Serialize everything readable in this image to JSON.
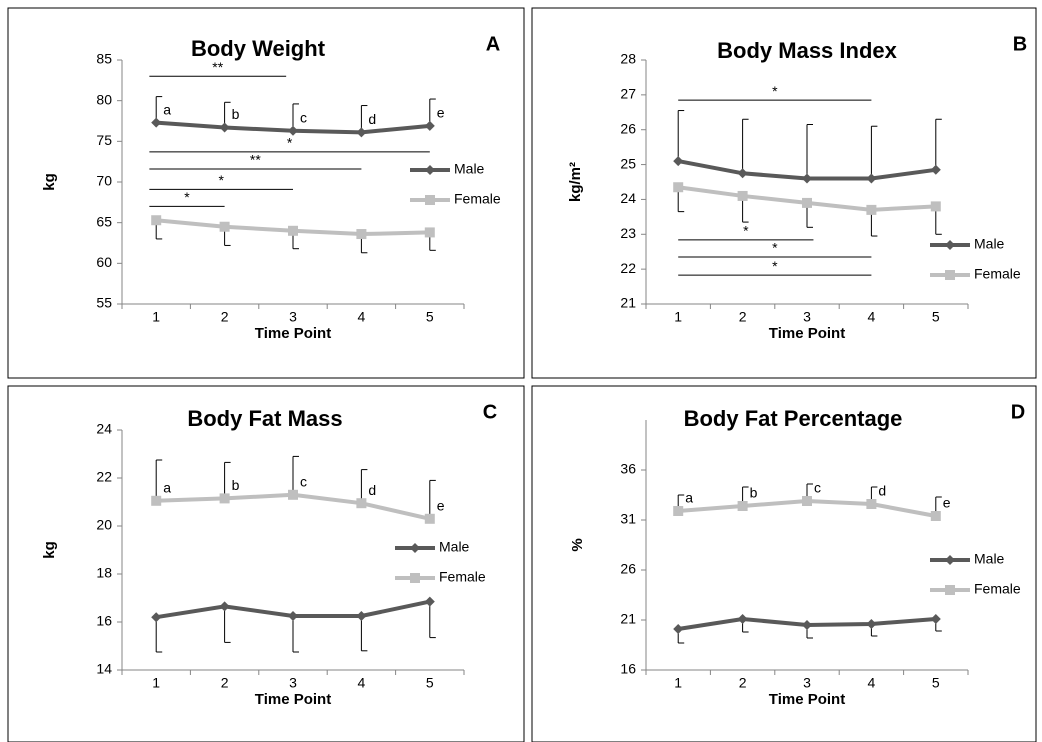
{
  "chart_data": [
    {
      "type": "line",
      "title": "Body Weight",
      "panel": "A",
      "x_label": "Time Point",
      "y_label": "kg",
      "x": [
        1,
        2,
        3,
        4,
        5
      ],
      "xlim": [
        0.5,
        5.5
      ],
      "xticks": [
        1,
        2,
        3,
        4,
        5
      ],
      "ylim": [
        55,
        85
      ],
      "yticks": [
        55,
        60,
        65,
        70,
        75,
        80,
        85
      ],
      "legend": "right",
      "series": [
        {
          "name": "Male",
          "color": "#595959",
          "marker": "diamond",
          "values": [
            77.3,
            76.7,
            76.3,
            76.1,
            76.9
          ],
          "errors": [
            3.2,
            3.1,
            3.3,
            3.3,
            3.3
          ],
          "error_direction": "up"
        },
        {
          "name": "Female",
          "color": "#bfbfbf",
          "marker": "square",
          "values": [
            65.3,
            64.5,
            64.0,
            63.6,
            63.8
          ],
          "errors": [
            2.3,
            2.3,
            2.2,
            2.3,
            2.2
          ],
          "error_direction": "down"
        }
      ],
      "point_labels": [
        "a",
        "b",
        "c",
        "d",
        "e"
      ],
      "point_labels_series": 0,
      "brackets": [
        {
          "label": "**",
          "from": 0.9,
          "to": 2.9,
          "y": 83
        },
        {
          "label": "*",
          "from": 0.9,
          "to": 5,
          "y": 73.7
        },
        {
          "label": "**",
          "from": 0.9,
          "to": 4,
          "y": 71.6
        },
        {
          "label": "*",
          "from": 0.9,
          "to": 3,
          "y": 69.1
        },
        {
          "label": "*",
          "from": 0.9,
          "to": 2,
          "y": 67
        }
      ]
    },
    {
      "type": "line",
      "title": "Body Mass Index",
      "panel": "B",
      "x_label": "Time Point",
      "y_label": "kg/m²",
      "x": [
        1,
        2,
        3,
        4,
        5
      ],
      "xlim": [
        0.5,
        5.5
      ],
      "xticks": [
        1,
        2,
        3,
        4,
        5
      ],
      "ylim": [
        21,
        28
      ],
      "yticks": [
        21,
        22,
        23,
        24,
        25,
        26,
        27,
        28
      ],
      "legend": "right",
      "series": [
        {
          "name": "Male",
          "color": "#595959",
          "marker": "diamond",
          "values": [
            25.1,
            24.75,
            24.6,
            24.6,
            24.85
          ],
          "errors": [
            1.45,
            1.55,
            1.55,
            1.5,
            1.45
          ],
          "error_direction": "up"
        },
        {
          "name": "Female",
          "color": "#bfbfbf",
          "marker": "square",
          "values": [
            24.35,
            24.1,
            23.9,
            23.7,
            23.8
          ],
          "errors": [
            0.7,
            0.75,
            0.7,
            0.75,
            0.8
          ],
          "error_direction": "down"
        }
      ],
      "brackets": [
        {
          "label": "*",
          "from": 1,
          "to": 4,
          "y": 26.85
        },
        {
          "label": "*",
          "from": 1,
          "to": 3.1,
          "y": 22.84
        },
        {
          "label": "*",
          "from": 1,
          "to": 4,
          "y": 22.35
        },
        {
          "label": "*",
          "from": 1,
          "to": 4,
          "y": 21.83
        }
      ]
    },
    {
      "type": "line",
      "title": "Body Fat Mass",
      "panel": "C",
      "x_label": "Time Point",
      "y_label": "kg",
      "x": [
        1,
        2,
        3,
        4,
        5
      ],
      "xlim": [
        0.5,
        5.5
      ],
      "xticks": [
        1,
        2,
        3,
        4,
        5
      ],
      "ylim": [
        14,
        24
      ],
      "yticks": [
        14,
        16,
        18,
        20,
        22,
        24
      ],
      "legend": "right",
      "series": [
        {
          "name": "Male",
          "color": "#595959",
          "marker": "diamond",
          "values": [
            16.2,
            16.65,
            16.25,
            16.25,
            16.85
          ],
          "errors": [
            1.45,
            1.5,
            1.5,
            1.45,
            1.5
          ],
          "error_direction": "down"
        },
        {
          "name": "Female",
          "color": "#bfbfbf",
          "marker": "square",
          "values": [
            21.05,
            21.15,
            21.3,
            20.95,
            20.3
          ],
          "errors": [
            1.7,
            1.5,
            1.6,
            1.4,
            1.6
          ],
          "error_direction": "up"
        }
      ],
      "point_labels": [
        "a",
        "b",
        "c",
        "d",
        "e"
      ],
      "point_labels_series": 1
    },
    {
      "type": "line",
      "title": "Body Fat Percentage",
      "panel": "D",
      "x_label": "Time Point",
      "y_label": "%",
      "x": [
        1,
        2,
        3,
        4,
        5
      ],
      "xlim": [
        0.5,
        5.5
      ],
      "xticks": [
        1,
        2,
        3,
        4,
        5
      ],
      "ylim": [
        16,
        41
      ],
      "yticks": [
        16,
        21,
        26,
        31,
        36
      ],
      "legend": "right",
      "series": [
        {
          "name": "Male",
          "color": "#595959",
          "marker": "diamond",
          "values": [
            20.1,
            21.1,
            20.5,
            20.6,
            21.1
          ],
          "errors": [
            1.4,
            1.3,
            1.3,
            1.2,
            1.2
          ],
          "error_direction": "down"
        },
        {
          "name": "Female",
          "color": "#bfbfbf",
          "marker": "square",
          "values": [
            31.9,
            32.4,
            32.9,
            32.6,
            31.4
          ],
          "errors": [
            1.6,
            1.9,
            1.7,
            1.7,
            1.9
          ],
          "error_direction": "up"
        }
      ],
      "point_labels": [
        "a",
        "b",
        "c",
        "d",
        "e"
      ],
      "point_labels_series": 1
    }
  ]
}
